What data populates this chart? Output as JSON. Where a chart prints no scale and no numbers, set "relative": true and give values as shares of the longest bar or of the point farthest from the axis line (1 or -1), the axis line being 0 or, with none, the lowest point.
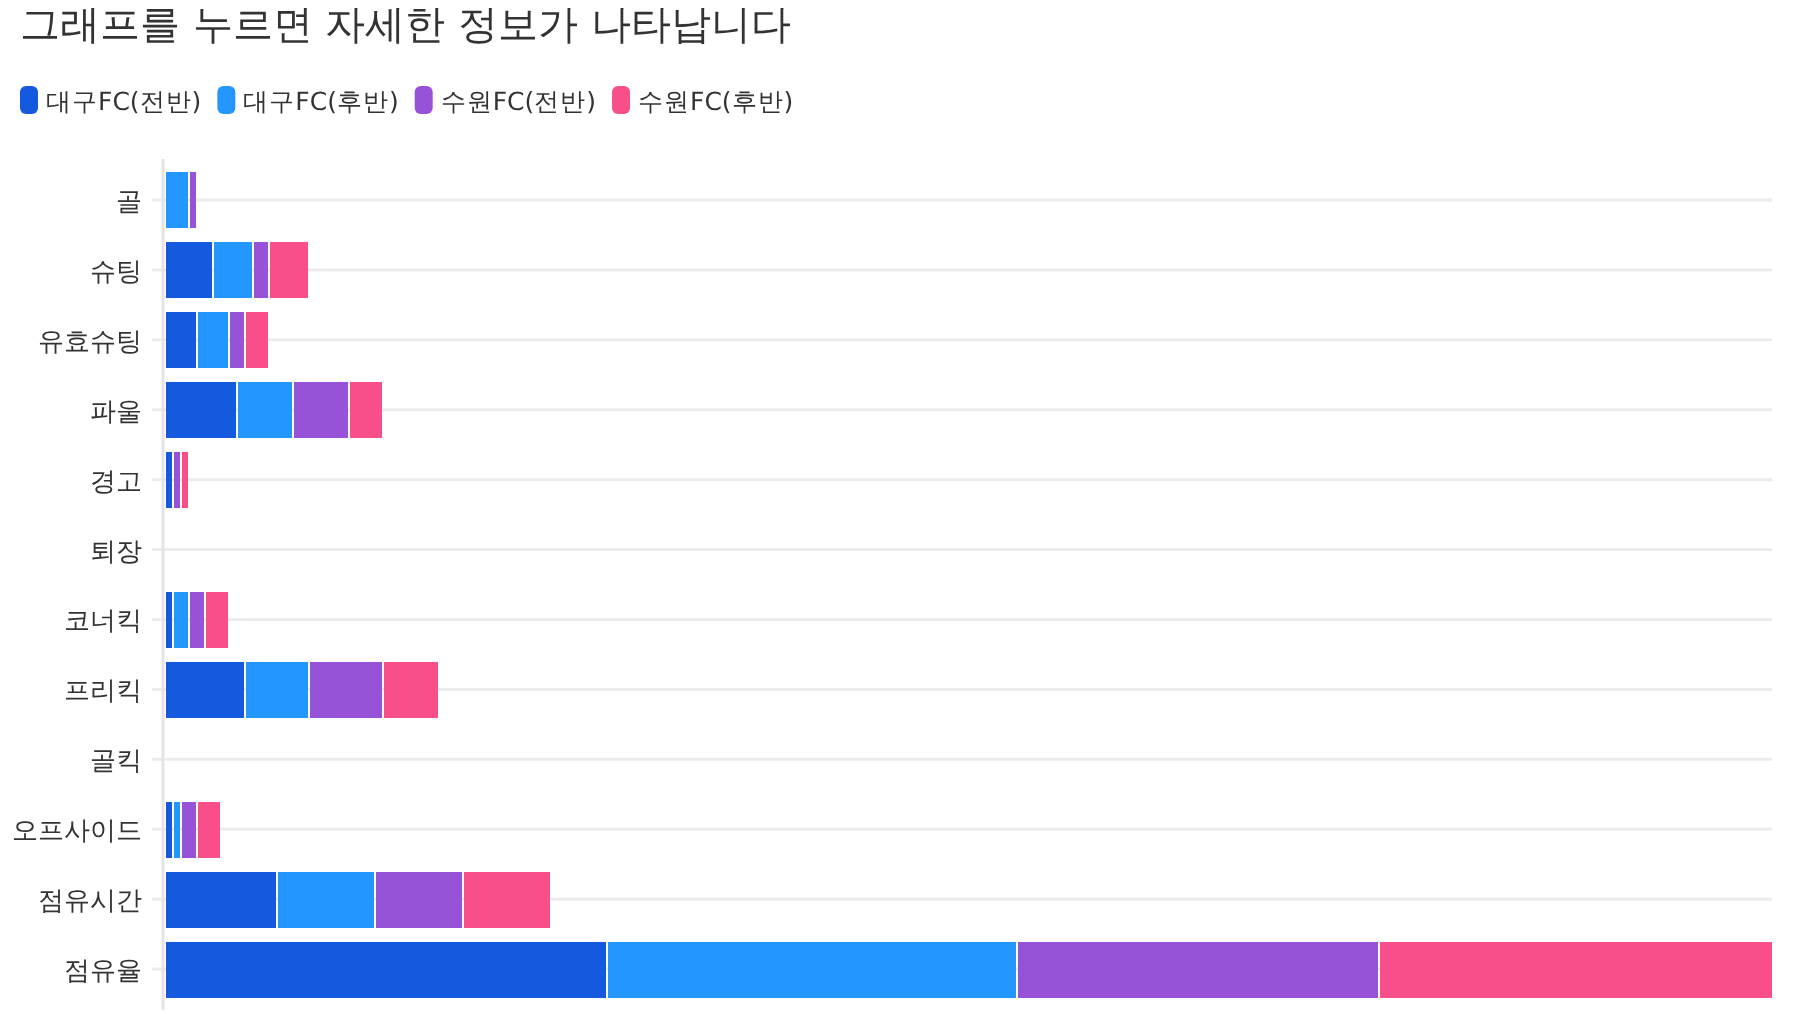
{
  "chart_data": {
    "type": "bar",
    "orientation": "horizontal",
    "stacked": true,
    "relative": true,
    "title": "그래프를 누르면 자세한 정보가 나타납니다",
    "legend": "top left",
    "grid": "y",
    "categories": [
      "골",
      "슈팅",
      "유효슈팅",
      "파울",
      "경고",
      "퇴장",
      "코너킥",
      "프리킥",
      "골킥",
      "오프사이드",
      "점유시간",
      "점유율"
    ],
    "series": [
      {
        "name": "대구FC(전반)",
        "color": "#155ade",
        "values": [
          null,
          0.03,
          0.02,
          0.045,
          0.005,
          null,
          0.005,
          0.05,
          null,
          0.005,
          0.07,
          0.275
        ]
      },
      {
        "name": "대구FC(후반)",
        "color": "#2397ff",
        "values": [
          0.015,
          0.025,
          0.02,
          0.035,
          null,
          null,
          0.01,
          0.04,
          null,
          0.005,
          0.06,
          0.255
        ]
      },
      {
        "name": "수원FC(전반)",
        "color": "#9753d8",
        "values": [
          0.005,
          0.01,
          0.01,
          0.035,
          0.005,
          null,
          0.01,
          0.045,
          null,
          0.01,
          0.055,
          0.225
        ]
      },
      {
        "name": "수원FC(후반)",
        "color": "#f84f8b",
        "values": [
          null,
          0.025,
          0.015,
          0.02,
          0.005,
          null,
          0.015,
          0.035,
          null,
          0.015,
          0.055,
          0.245
        ]
      }
    ]
  }
}
